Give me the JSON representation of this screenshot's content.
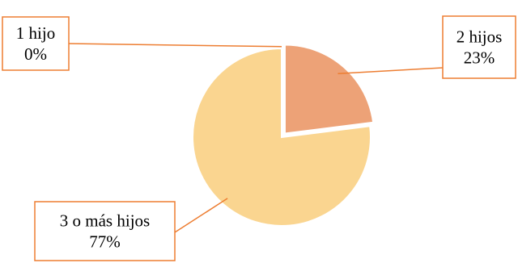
{
  "chart_data": {
    "type": "pie",
    "categories": [
      "1 hijo",
      "2 hijos",
      "3 o más hijos"
    ],
    "values": [
      0,
      23,
      77
    ],
    "value_labels": [
      "0%",
      "23%",
      "77%"
    ],
    "colors": [
      "#F4B183",
      "#EDA277",
      "#FAD590"
    ],
    "callout_border_color": "#ED7D31",
    "legend": "none"
  }
}
